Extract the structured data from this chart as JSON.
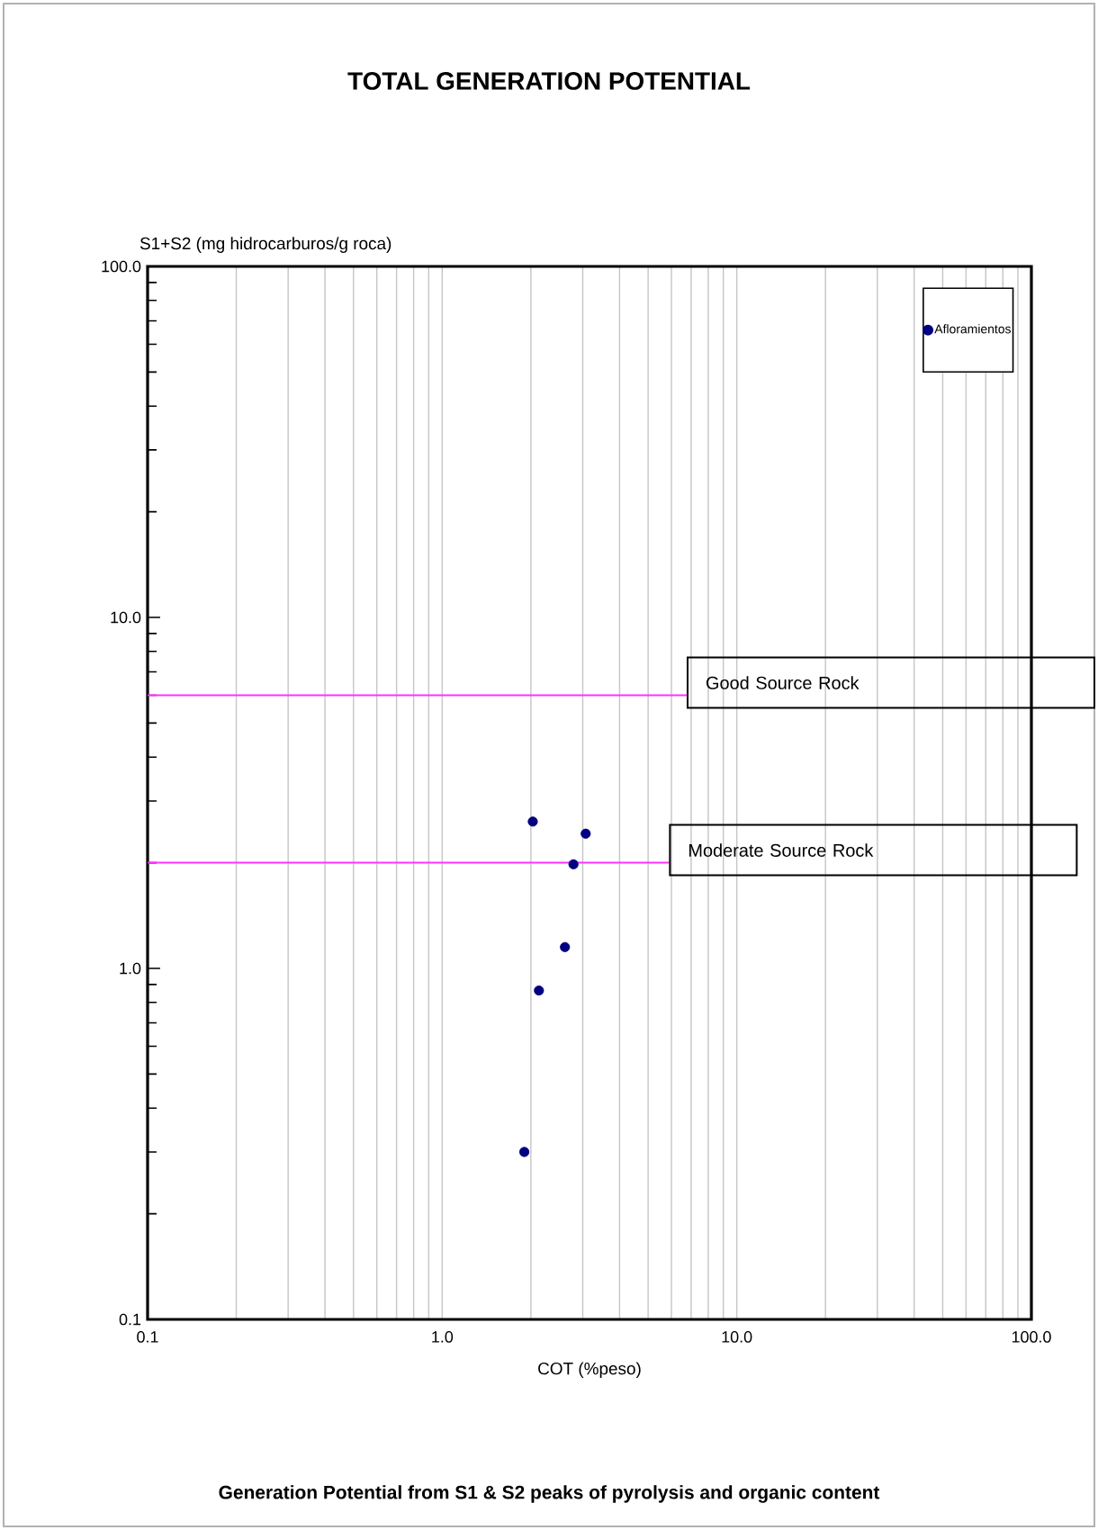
{
  "chart_data": {
    "type": "scatter",
    "title": "TOTAL GENERATION POTENTIAL",
    "xlabel": "COT (%peso)",
    "ylabel": "S1+S2 (mg hidrocarburos/g roca)",
    "annotations": [
      "Generation Potential from S1 & S2 peaks of pyrolysis and organic content"
    ],
    "log": "xy",
    "grid": "x",
    "legend": "top right",
    "marker": "circle",
    "xlim": [
      0.1,
      100
    ],
    "ylim": [
      0.1,
      100
    ],
    "xticks": [
      {
        "value": 0.1,
        "label": "0.1"
      },
      {
        "value": 1,
        "label": "1.0"
      },
      {
        "value": 10,
        "label": "10.0"
      },
      {
        "value": 100,
        "label": "100.0"
      }
    ],
    "yticks": [
      {
        "value": 0.1,
        "label": "0.1"
      },
      {
        "value": 1,
        "label": "1.0"
      },
      {
        "value": 10,
        "label": "10.0"
      },
      {
        "value": 100,
        "label": "100.0"
      }
    ],
    "ref_lines": [
      {
        "axis": "y",
        "value": 6,
        "label": "Good Source Rock",
        "color": "#ff33ff"
      },
      {
        "axis": "y",
        "value": 2,
        "label": "Moderate Source Rock",
        "color": "#ff33ff"
      }
    ],
    "series": [
      {
        "name": "Afloramientos",
        "color": "#000080",
        "x": [
          2.03,
          3.07,
          2.79,
          2.61,
          2.13,
          1.9
        ],
        "values": [
          2.62,
          2.42,
          1.98,
          1.15,
          0.865,
          0.3
        ]
      }
    ]
  }
}
